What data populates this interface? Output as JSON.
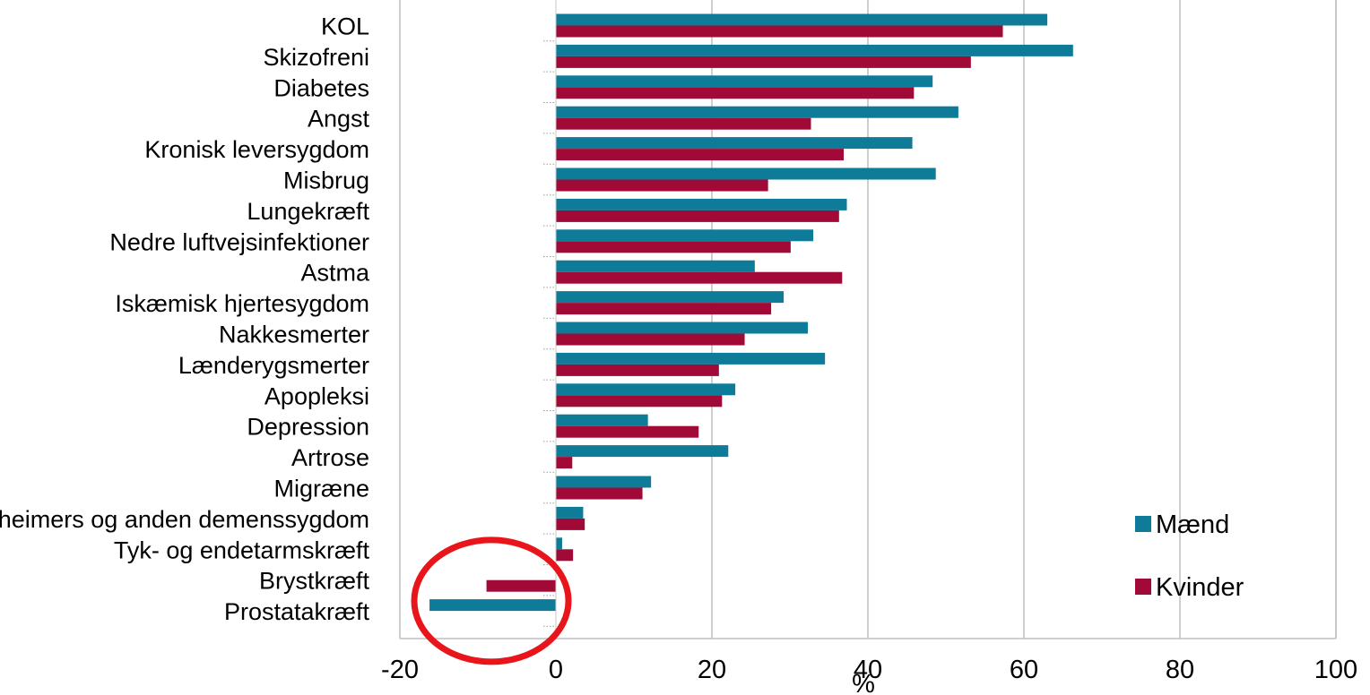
{
  "chart_data": {
    "type": "bar",
    "orientation": "horizontal",
    "title": "",
    "xlabel": "%",
    "ylabel": "",
    "xlim": [
      -20,
      100
    ],
    "x_ticks": [
      -20,
      0,
      20,
      40,
      60,
      80,
      100
    ],
    "x_tick_labels": [
      "-20",
      "0",
      "20",
      "40",
      "60",
      "80",
      "100"
    ],
    "grid": "vertical",
    "legend_position": "bottom-right",
    "categories": [
      "KOL",
      "Skizofreni",
      "Diabetes",
      "Angst ",
      "Kronisk leversygdom",
      "Misbrug",
      "Lungekræft",
      "Nedre luftvejsinfektioner",
      "Astma",
      "Iskæmisk hjertesygdom",
      "Nakkesmerter",
      "Lænderygsmerter",
      "Apopleksi",
      "Depression",
      "Artrose",
      "Migræne",
      "Alzheimers og anden demenssygdom",
      "Tyk- og endetarmskræft",
      "Brystkræft",
      "Prostatakræft"
    ],
    "series": [
      {
        "name": "Mænd",
        "color": "#0e7c99",
        "values": [
          63.0,
          66.3,
          48.3,
          51.6,
          45.7,
          48.7,
          37.3,
          33.0,
          25.5,
          29.2,
          32.3,
          34.5,
          23.0,
          11.8,
          22.1,
          12.2,
          3.5,
          0.8,
          null,
          -16.2
        ]
      },
      {
        "name": "Kvinder",
        "color": "#a10a36",
        "values": [
          57.3,
          53.2,
          45.9,
          32.7,
          36.9,
          27.2,
          36.3,
          30.1,
          36.7,
          27.6,
          24.2,
          20.9,
          21.3,
          18.3,
          2.1,
          11.1,
          3.7,
          2.2,
          -8.9,
          null
        ]
      }
    ],
    "annotations": [
      {
        "type": "ellipse",
        "color": "#e8151b",
        "target_categories": [
          "Brystkræft",
          "Prostatakræft"
        ]
      }
    ]
  }
}
